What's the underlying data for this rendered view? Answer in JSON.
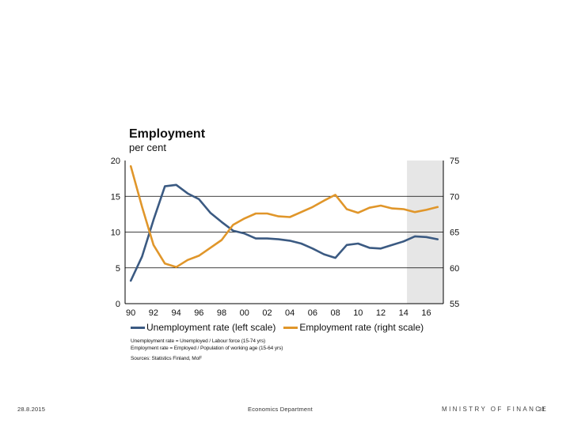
{
  "chart_data": {
    "type": "line",
    "title": "Employment",
    "subtitle": "per cent",
    "x_labels": [
      "90",
      "92",
      "94",
      "96",
      "98",
      "00",
      "02",
      "04",
      "06",
      "08",
      "10",
      "12",
      "14",
      "16"
    ],
    "xlim": [
      1989.5,
      2017.5
    ],
    "forecast_shade": [
      2014.3,
      2017.5
    ],
    "y_left": {
      "range": [
        0,
        20
      ],
      "ticks": [
        "0",
        "5",
        "10",
        "15",
        "20"
      ],
      "label": "Unemployment rate (left scale)"
    },
    "y_right": {
      "range": [
        55,
        75
      ],
      "ticks": [
        "55",
        "60",
        "65",
        "70",
        "75"
      ],
      "label": "Employment rate (right scale)"
    },
    "gridlines_left_values": [
      5,
      10,
      15
    ],
    "series": [
      {
        "name": "Unemployment rate (left scale)",
        "axis": "left",
        "color": "#3B5A82",
        "x": [
          1990,
          1991,
          1992,
          1993,
          1994,
          1995,
          1996,
          1997,
          1998,
          1999,
          2000,
          2001,
          2002,
          2003,
          2004,
          2005,
          2006,
          2007,
          2008,
          2009,
          2010,
          2011,
          2012,
          2013,
          2014,
          2015,
          2016,
          2017
        ],
        "values": [
          3.2,
          6.6,
          11.7,
          16.4,
          16.6,
          15.4,
          14.6,
          12.7,
          11.4,
          10.2,
          9.8,
          9.1,
          9.1,
          9.0,
          8.8,
          8.4,
          7.7,
          6.9,
          6.4,
          8.2,
          8.4,
          7.8,
          7.7,
          8.2,
          8.7,
          9.4,
          9.3,
          9.0
        ]
      },
      {
        "name": "Employment rate (right scale)",
        "axis": "right",
        "color": "#E0962A",
        "x": [
          1990,
          1991,
          1992,
          1993,
          1994,
          1995,
          1996,
          1997,
          1998,
          1999,
          2000,
          2001,
          2002,
          2003,
          2004,
          2005,
          2006,
          2007,
          2008,
          2009,
          2010,
          2011,
          2012,
          2013,
          2014,
          2015,
          2016,
          2017
        ],
        "values": [
          74.2,
          68.5,
          63.2,
          60.6,
          60.1,
          61.1,
          61.7,
          62.8,
          63.9,
          66.0,
          66.9,
          67.6,
          67.6,
          67.2,
          67.1,
          67.8,
          68.5,
          69.4,
          70.2,
          68.2,
          67.7,
          68.4,
          68.7,
          68.3,
          68.2,
          67.8,
          68.1,
          68.5
        ]
      }
    ]
  },
  "notes": [
    "Unemployment rate = Unemployed / Labour force (15-74 yrs)",
    "Employment rate = Employed / Population of working age (15-64 yrs)",
    "Sources: Statistics Finland, MoF"
  ],
  "footer": {
    "date": "28.8.2015",
    "department": "Economics Department",
    "ministry": "MINISTRY OF FINANCE",
    "page": "31"
  }
}
